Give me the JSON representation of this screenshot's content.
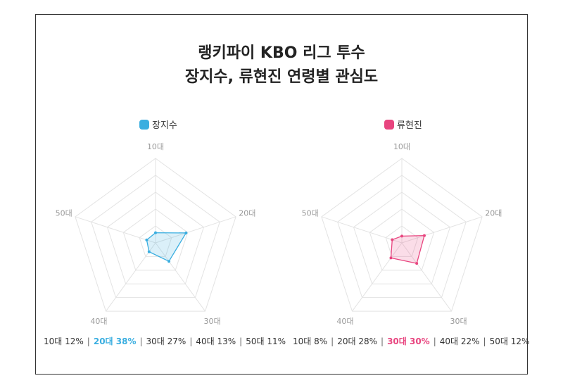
{
  "title_line1": "랭키파이 KBO 리그 투수",
  "title_line2": "장지수, 류현진 연령별 관심도",
  "colors": {
    "series1": "#3aaee0",
    "series2": "#e8457f",
    "grid": "#e3e3e3"
  },
  "chart_data": [
    {
      "type": "radar",
      "categories": [
        "10대",
        "20대",
        "30대",
        "40대",
        "50대"
      ],
      "series": [
        {
          "name": "장지수",
          "values": [
            12,
            38,
            27,
            13,
            11
          ]
        }
      ],
      "summary": [
        "10대 12%",
        "20대 38%",
        "30대 27%",
        "40대 13%",
        "50대 11%"
      ],
      "highlight_index": 1,
      "rmax": 100,
      "grid_levels": 5
    },
    {
      "type": "radar",
      "categories": [
        "10대",
        "20대",
        "30대",
        "40대",
        "50대"
      ],
      "series": [
        {
          "name": "류현진",
          "values": [
            8,
            28,
            30,
            22,
            12
          ]
        }
      ],
      "summary": [
        "10대 8%",
        "20대 28%",
        "30대 30%",
        "40대 22%",
        "50대 12%"
      ],
      "highlight_index": 2,
      "rmax": 100,
      "grid_levels": 5
    }
  ]
}
